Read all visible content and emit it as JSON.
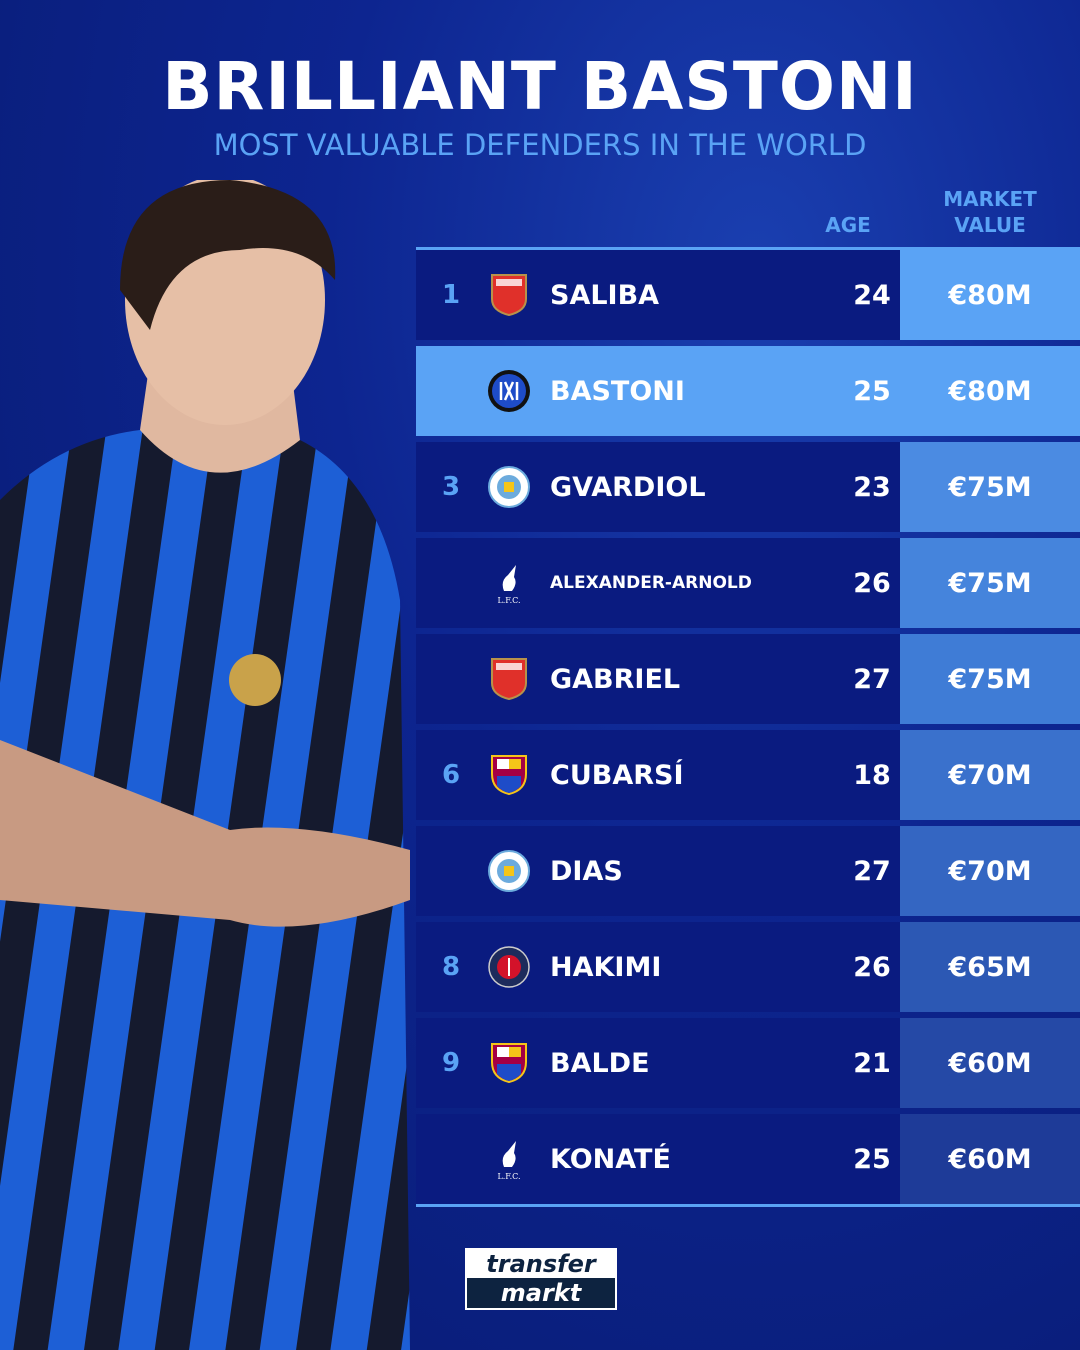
{
  "title": "BRILLIANT BASTONI",
  "subtitle": "MOST VALUABLE DEFENDERS IN THE WORLD",
  "columns": {
    "age": "AGE",
    "market_value_line1": "MARKET",
    "market_value_line2": "VALUE"
  },
  "accent_color": "#5aa3f5",
  "rows": [
    {
      "rank": "1",
      "club_icon": "arsenal-crest",
      "name": "SALIBA",
      "age": "24",
      "value": "€80M",
      "value_color": "#5aa3f5"
    },
    {
      "rank": "",
      "club_icon": "inter-crest",
      "name": "BASTONI",
      "age": "25",
      "value": "€80M",
      "value_color": "#5aa3f5",
      "highlighted": true
    },
    {
      "rank": "3",
      "club_icon": "man-city-crest",
      "name": "GVARDIOL",
      "age": "23",
      "value": "€75M",
      "value_color": "#4b8be2"
    },
    {
      "rank": "",
      "club_icon": "liverpool-crest",
      "name": "ALEXANDER-ARNOLD",
      "age": "26",
      "value": "€75M",
      "value_color": "#4584dc"
    },
    {
      "rank": "",
      "club_icon": "arsenal-crest",
      "name": "GABRIEL",
      "age": "27",
      "value": "€75M",
      "value_color": "#3f7cd6"
    },
    {
      "rank": "6",
      "club_icon": "barcelona-crest",
      "name": "CUBARSÍ",
      "age": "18",
      "value": "€70M",
      "value_color": "#3a71cc"
    },
    {
      "rank": "",
      "club_icon": "man-city-crest",
      "name": "DIAS",
      "age": "27",
      "value": "€70M",
      "value_color": "#3466c2"
    },
    {
      "rank": "8",
      "club_icon": "psg-crest",
      "name": "HAKIMI",
      "age": "26",
      "value": "€65M",
      "value_color": "#2c58b4"
    },
    {
      "rank": "9",
      "club_icon": "barcelona-crest",
      "name": "BALDE",
      "age": "21",
      "value": "€60M",
      "value_color": "#2549a6"
    },
    {
      "rank": "",
      "club_icon": "liverpool-crest",
      "name": "KONATÉ",
      "age": "25",
      "value": "€60M",
      "value_color": "#1e3b98"
    }
  ],
  "brand_logo": {
    "line1": "transfer",
    "line2": "markt"
  }
}
